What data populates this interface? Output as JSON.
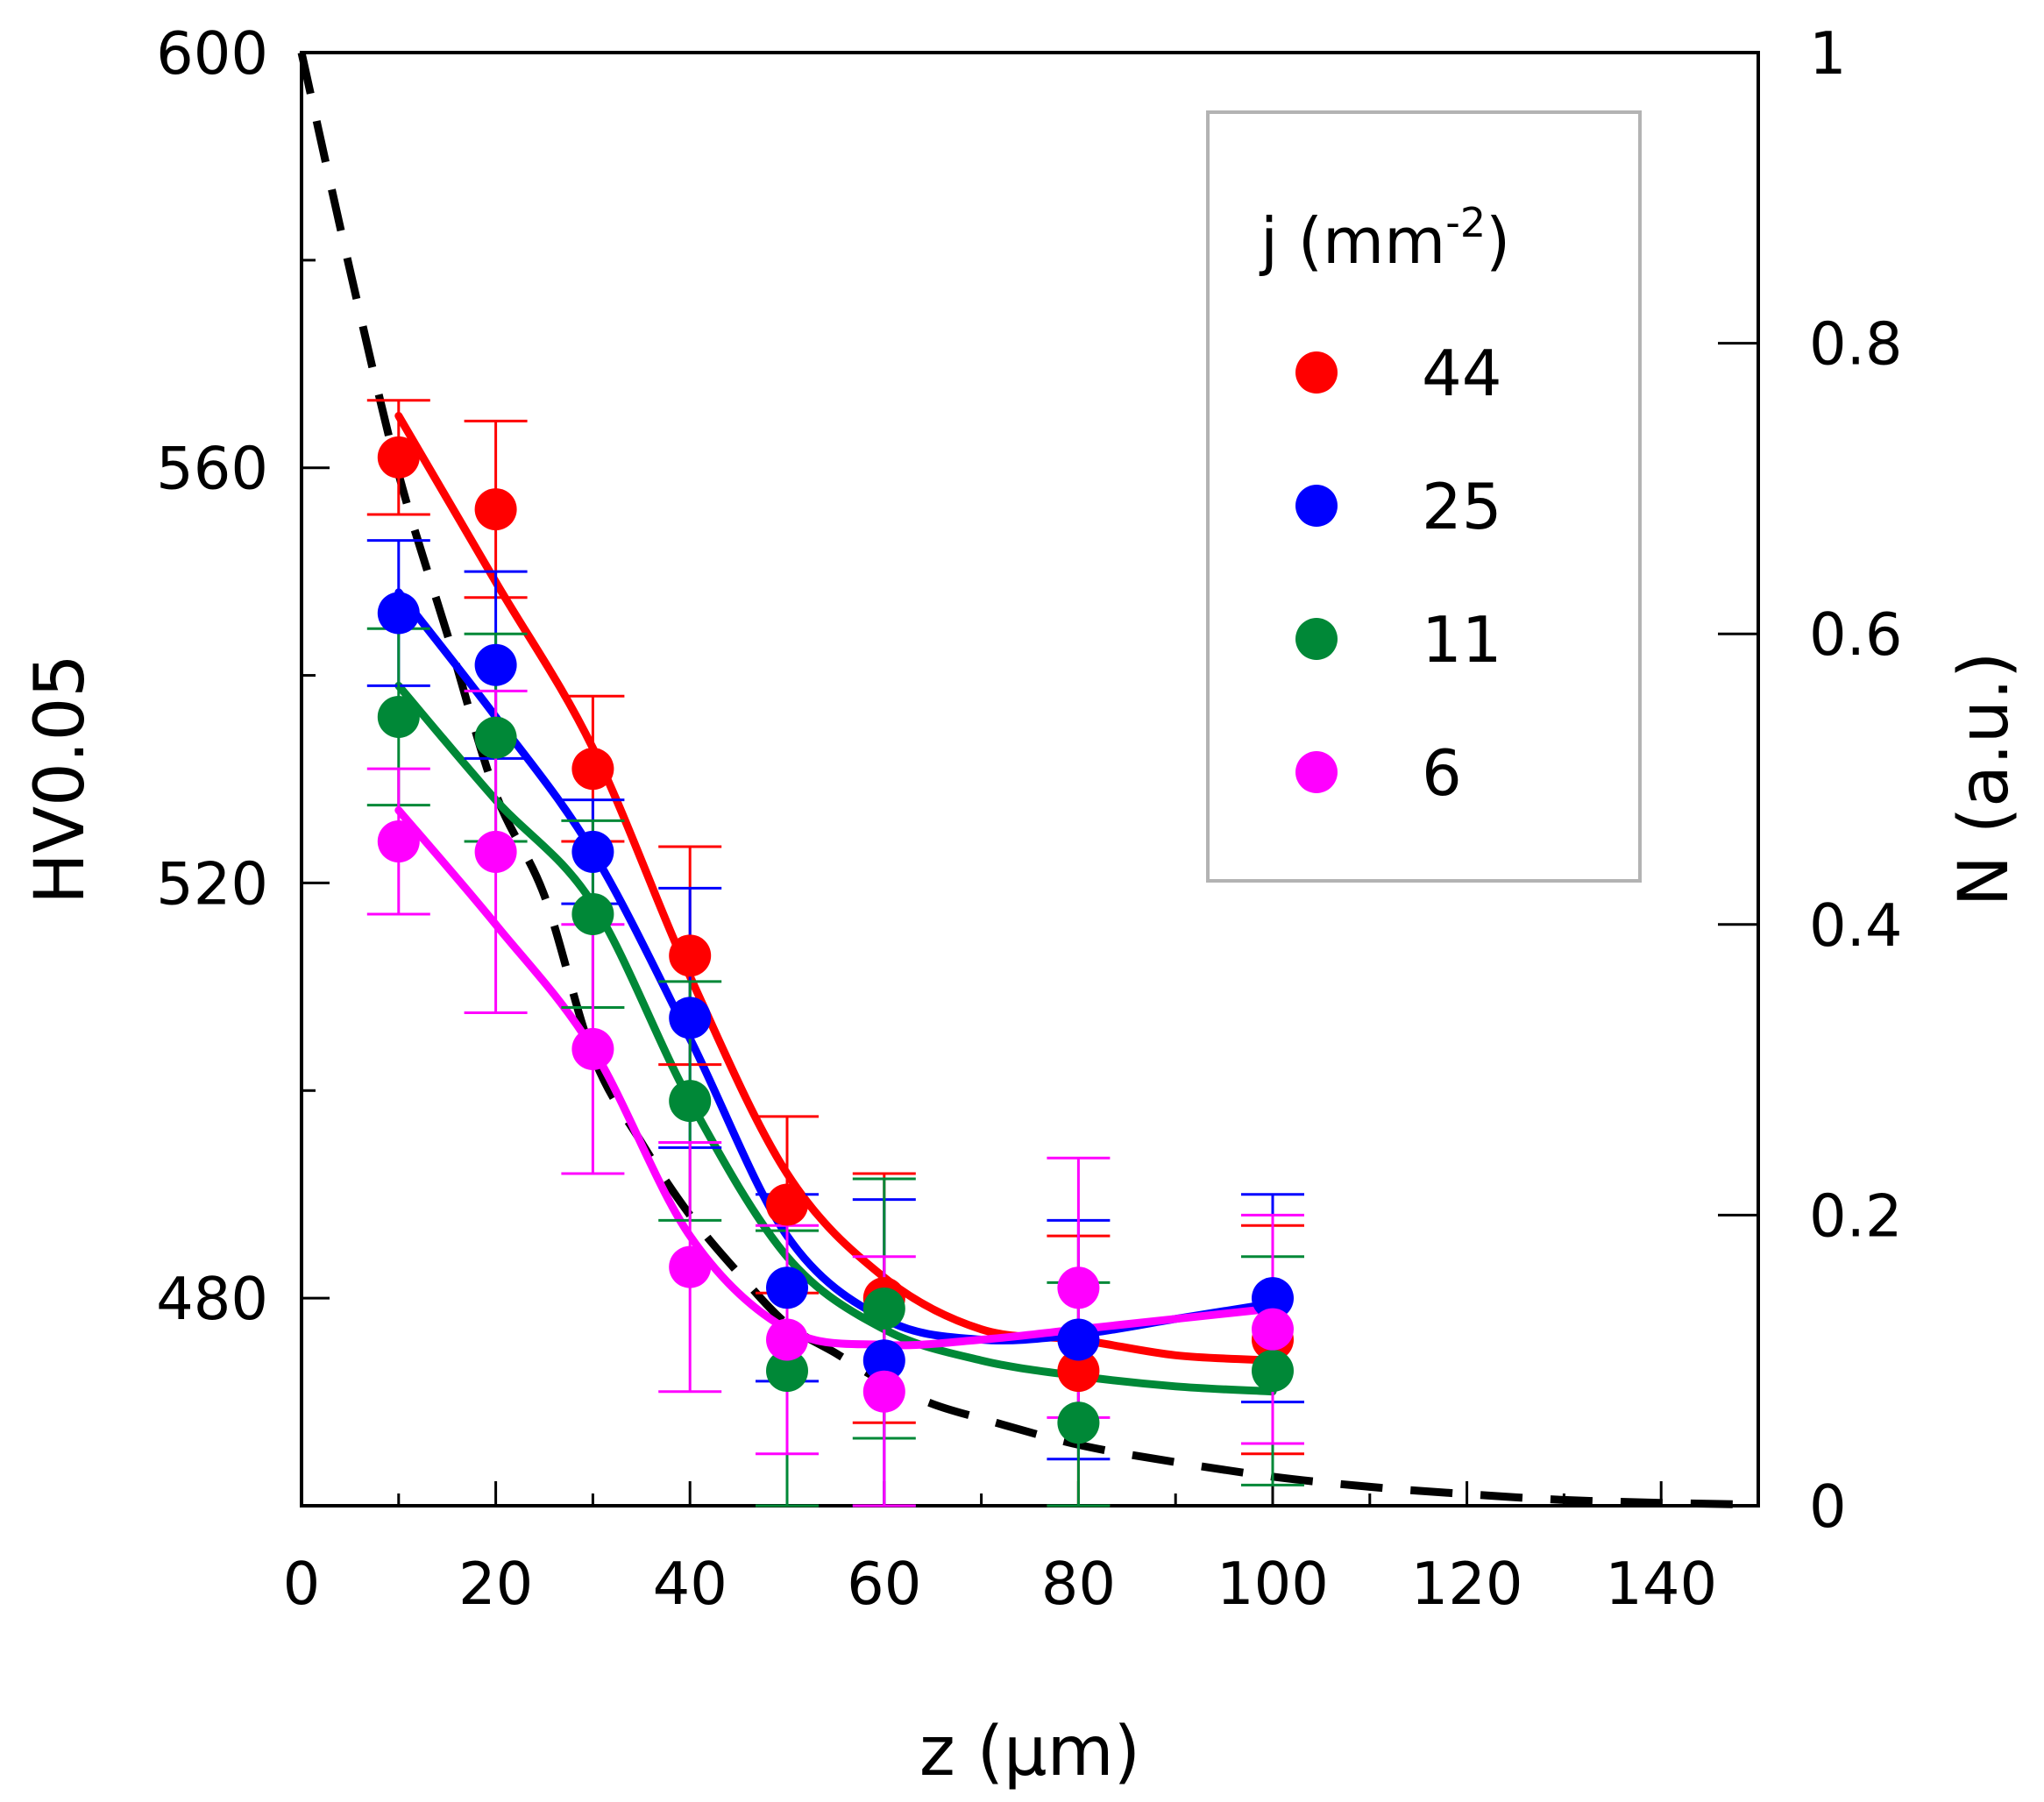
{
  "chart_data": {
    "type": "line",
    "x_axis": {
      "label": "z (μm)",
      "range": [
        0,
        150
      ],
      "major_ticks": [
        0,
        20,
        40,
        60,
        80,
        100,
        120,
        140
      ],
      "tick_labels": [
        "0",
        "20",
        "40",
        "60",
        "80",
        "100",
        "120",
        "140"
      ]
    },
    "y_axis_left": {
      "label": "HV0.05",
      "range": [
        460,
        600
      ],
      "major_ticks": [
        480,
        520,
        560,
        600
      ],
      "tick_labels": [
        "480",
        "520",
        "560",
        "600"
      ]
    },
    "y_axis_right": {
      "label": "N (a.u.)",
      "range": [
        0,
        1
      ],
      "major_ticks": [
        0,
        0.2,
        0.4,
        0.6,
        0.8,
        1
      ],
      "tick_labels": [
        "0",
        "0.2",
        "0.4",
        "0.6",
        "0.8",
        "1"
      ]
    },
    "legend": {
      "title_prefix": "j (mm",
      "title_superscript": "-2",
      "title_suffix": ")",
      "placement": "top-right"
    },
    "grid": false,
    "series": [
      {
        "name": "44",
        "color": "#ff0000",
        "points": [
          {
            "x": 10,
            "y": 561,
            "err": 5.5
          },
          {
            "x": 20,
            "y": 556,
            "err": 8.5
          },
          {
            "x": 30,
            "y": 531,
            "err": 7
          },
          {
            "x": 40,
            "y": 513,
            "err": 10.5
          },
          {
            "x": 50,
            "y": 489,
            "err": 8.5
          },
          {
            "x": 60,
            "y": 480,
            "err": 12
          },
          {
            "x": 80,
            "y": 473,
            "err": 13
          },
          {
            "x": 100,
            "y": 476,
            "err": 11
          }
        ],
        "fit": [
          [
            10,
            565
          ],
          [
            20,
            549
          ],
          [
            30,
            533
          ],
          [
            40,
            511
          ],
          [
            50,
            492
          ],
          [
            60,
            482
          ],
          [
            70,
            477
          ],
          [
            80,
            476
          ],
          [
            90,
            474.5
          ],
          [
            100,
            474
          ]
        ]
      },
      {
        "name": "25",
        "color": "#0000ff",
        "points": [
          {
            "x": 10,
            "y": 546,
            "err": 7
          },
          {
            "x": 20,
            "y": 541,
            "err": 9
          },
          {
            "x": 30,
            "y": 523,
            "err": 5
          },
          {
            "x": 40,
            "y": 507,
            "err": 12.5
          },
          {
            "x": 50,
            "y": 481,
            "err": 9
          },
          {
            "x": 60,
            "y": 474,
            "err": 15.5
          },
          {
            "x": 80,
            "y": 476,
            "err": 11.5
          },
          {
            "x": 100,
            "y": 480,
            "err": 10
          }
        ],
        "fit": [
          [
            10,
            548
          ],
          [
            20,
            536
          ],
          [
            30,
            523
          ],
          [
            40,
            505
          ],
          [
            50,
            486
          ],
          [
            60,
            478
          ],
          [
            70,
            476
          ],
          [
            80,
            476.5
          ],
          [
            90,
            478
          ],
          [
            100,
            479.5
          ]
        ]
      },
      {
        "name": "11",
        "color": "#008837",
        "points": [
          {
            "x": 10,
            "y": 536,
            "err": 8.5
          },
          {
            "x": 20,
            "y": 534,
            "err": 10
          },
          {
            "x": 30,
            "y": 517,
            "err": 9
          },
          {
            "x": 40,
            "y": 499,
            "err": 11.5
          },
          {
            "x": 50,
            "y": 473,
            "err": 13.5
          },
          {
            "x": 60,
            "y": 479,
            "err": 12.5
          },
          {
            "x": 80,
            "y": 468,
            "err": 13.5
          },
          {
            "x": 100,
            "y": 473,
            "err": 11
          }
        ],
        "fit": [
          [
            10,
            539
          ],
          [
            20,
            528
          ],
          [
            30,
            518
          ],
          [
            40,
            499
          ],
          [
            50,
            484
          ],
          [
            60,
            477
          ],
          [
            70,
            474
          ],
          [
            80,
            472.5
          ],
          [
            90,
            471.5
          ],
          [
            100,
            471
          ]
        ]
      },
      {
        "name": "6",
        "color": "#ff00ff",
        "points": [
          {
            "x": 10,
            "y": 524,
            "err": 7
          },
          {
            "x": 20,
            "y": 523,
            "err": 15.5
          },
          {
            "x": 30,
            "y": 504,
            "err": 12
          },
          {
            "x": 40,
            "y": 483,
            "err": 12
          },
          {
            "x": 50,
            "y": 476,
            "err": 11
          },
          {
            "x": 60,
            "y": 471,
            "err": 13
          },
          {
            "x": 80,
            "y": 481,
            "err": 12.5
          },
          {
            "x": 100,
            "y": 477,
            "err": 11
          }
        ],
        "fit": [
          [
            10,
            527
          ],
          [
            20,
            516
          ],
          [
            30,
            504
          ],
          [
            40,
            486
          ],
          [
            50,
            477
          ],
          [
            60,
            475.5
          ],
          [
            70,
            476
          ],
          [
            80,
            477
          ],
          [
            90,
            478
          ],
          [
            100,
            479
          ]
        ]
      }
    ],
    "reference_curve": {
      "axis": "right",
      "style": "dashed",
      "color": "#000000",
      "points": [
        [
          0,
          1.0
        ],
        [
          5,
          0.85
        ],
        [
          10,
          0.71
        ],
        [
          15,
          0.6
        ],
        [
          20,
          0.49
        ],
        [
          25,
          0.42
        ],
        [
          30,
          0.31
        ],
        [
          35,
          0.25
        ],
        [
          40,
          0.2
        ],
        [
          45,
          0.16
        ],
        [
          50,
          0.125
        ],
        [
          55,
          0.105
        ],
        [
          60,
          0.085
        ],
        [
          65,
          0.07
        ],
        [
          70,
          0.06
        ],
        [
          80,
          0.042
        ],
        [
          90,
          0.03
        ],
        [
          100,
          0.02
        ],
        [
          110,
          0.013
        ],
        [
          120,
          0.008
        ],
        [
          130,
          0.004
        ],
        [
          140,
          0.002
        ],
        [
          148,
          0.001
        ]
      ]
    }
  }
}
